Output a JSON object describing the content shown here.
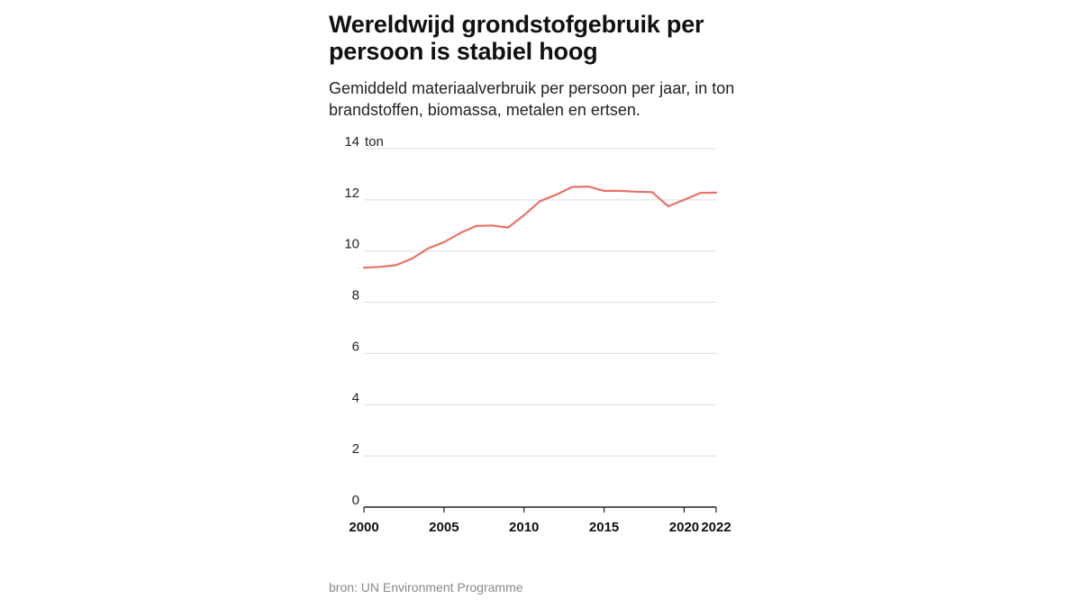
{
  "title": "Wereldwijd grondstofgebruik per persoon is stabiel hoog",
  "subtitle": "Gemiddeld materiaalverbruik per persoon per jaar, in ton brandstoffen, biomassa, metalen en ertsen.",
  "source": "bron: UN Environment Programme",
  "colors": {
    "line": "#e8726a",
    "grid": "#dddddd",
    "axis": "#222222"
  },
  "chart_data": {
    "type": "line",
    "ylabel": "ton",
    "ylim": [
      0,
      14
    ],
    "y_ticks": [
      0,
      2,
      4,
      6,
      8,
      10,
      12,
      14
    ],
    "y_tick_labels": [
      "0",
      "2",
      "4",
      "6",
      "8",
      "10",
      "12",
      "14"
    ],
    "y_top_unit": "ton",
    "xlim": [
      2000,
      2022
    ],
    "x_ticks": [
      2000,
      2005,
      2010,
      2015,
      2020,
      2022
    ],
    "x_tick_labels": [
      "2000",
      "2005",
      "2010",
      "2015",
      "2020",
      "2022"
    ],
    "grid": true,
    "series": [
      {
        "x": [
          2000,
          2001,
          2002,
          2003,
          2004,
          2005,
          2006,
          2007,
          2008,
          2009,
          2010,
          2011,
          2012,
          2013,
          2014,
          2015,
          2016,
          2017,
          2018,
          2019,
          2020,
          2021,
          2022
        ],
        "values": [
          9.35,
          9.38,
          9.45,
          9.7,
          10.1,
          10.35,
          10.7,
          10.98,
          11.0,
          10.92,
          11.4,
          11.95,
          12.2,
          12.5,
          12.52,
          12.35,
          12.35,
          12.32,
          12.3,
          11.75,
          12.0,
          12.27,
          12.28
        ]
      }
    ]
  }
}
